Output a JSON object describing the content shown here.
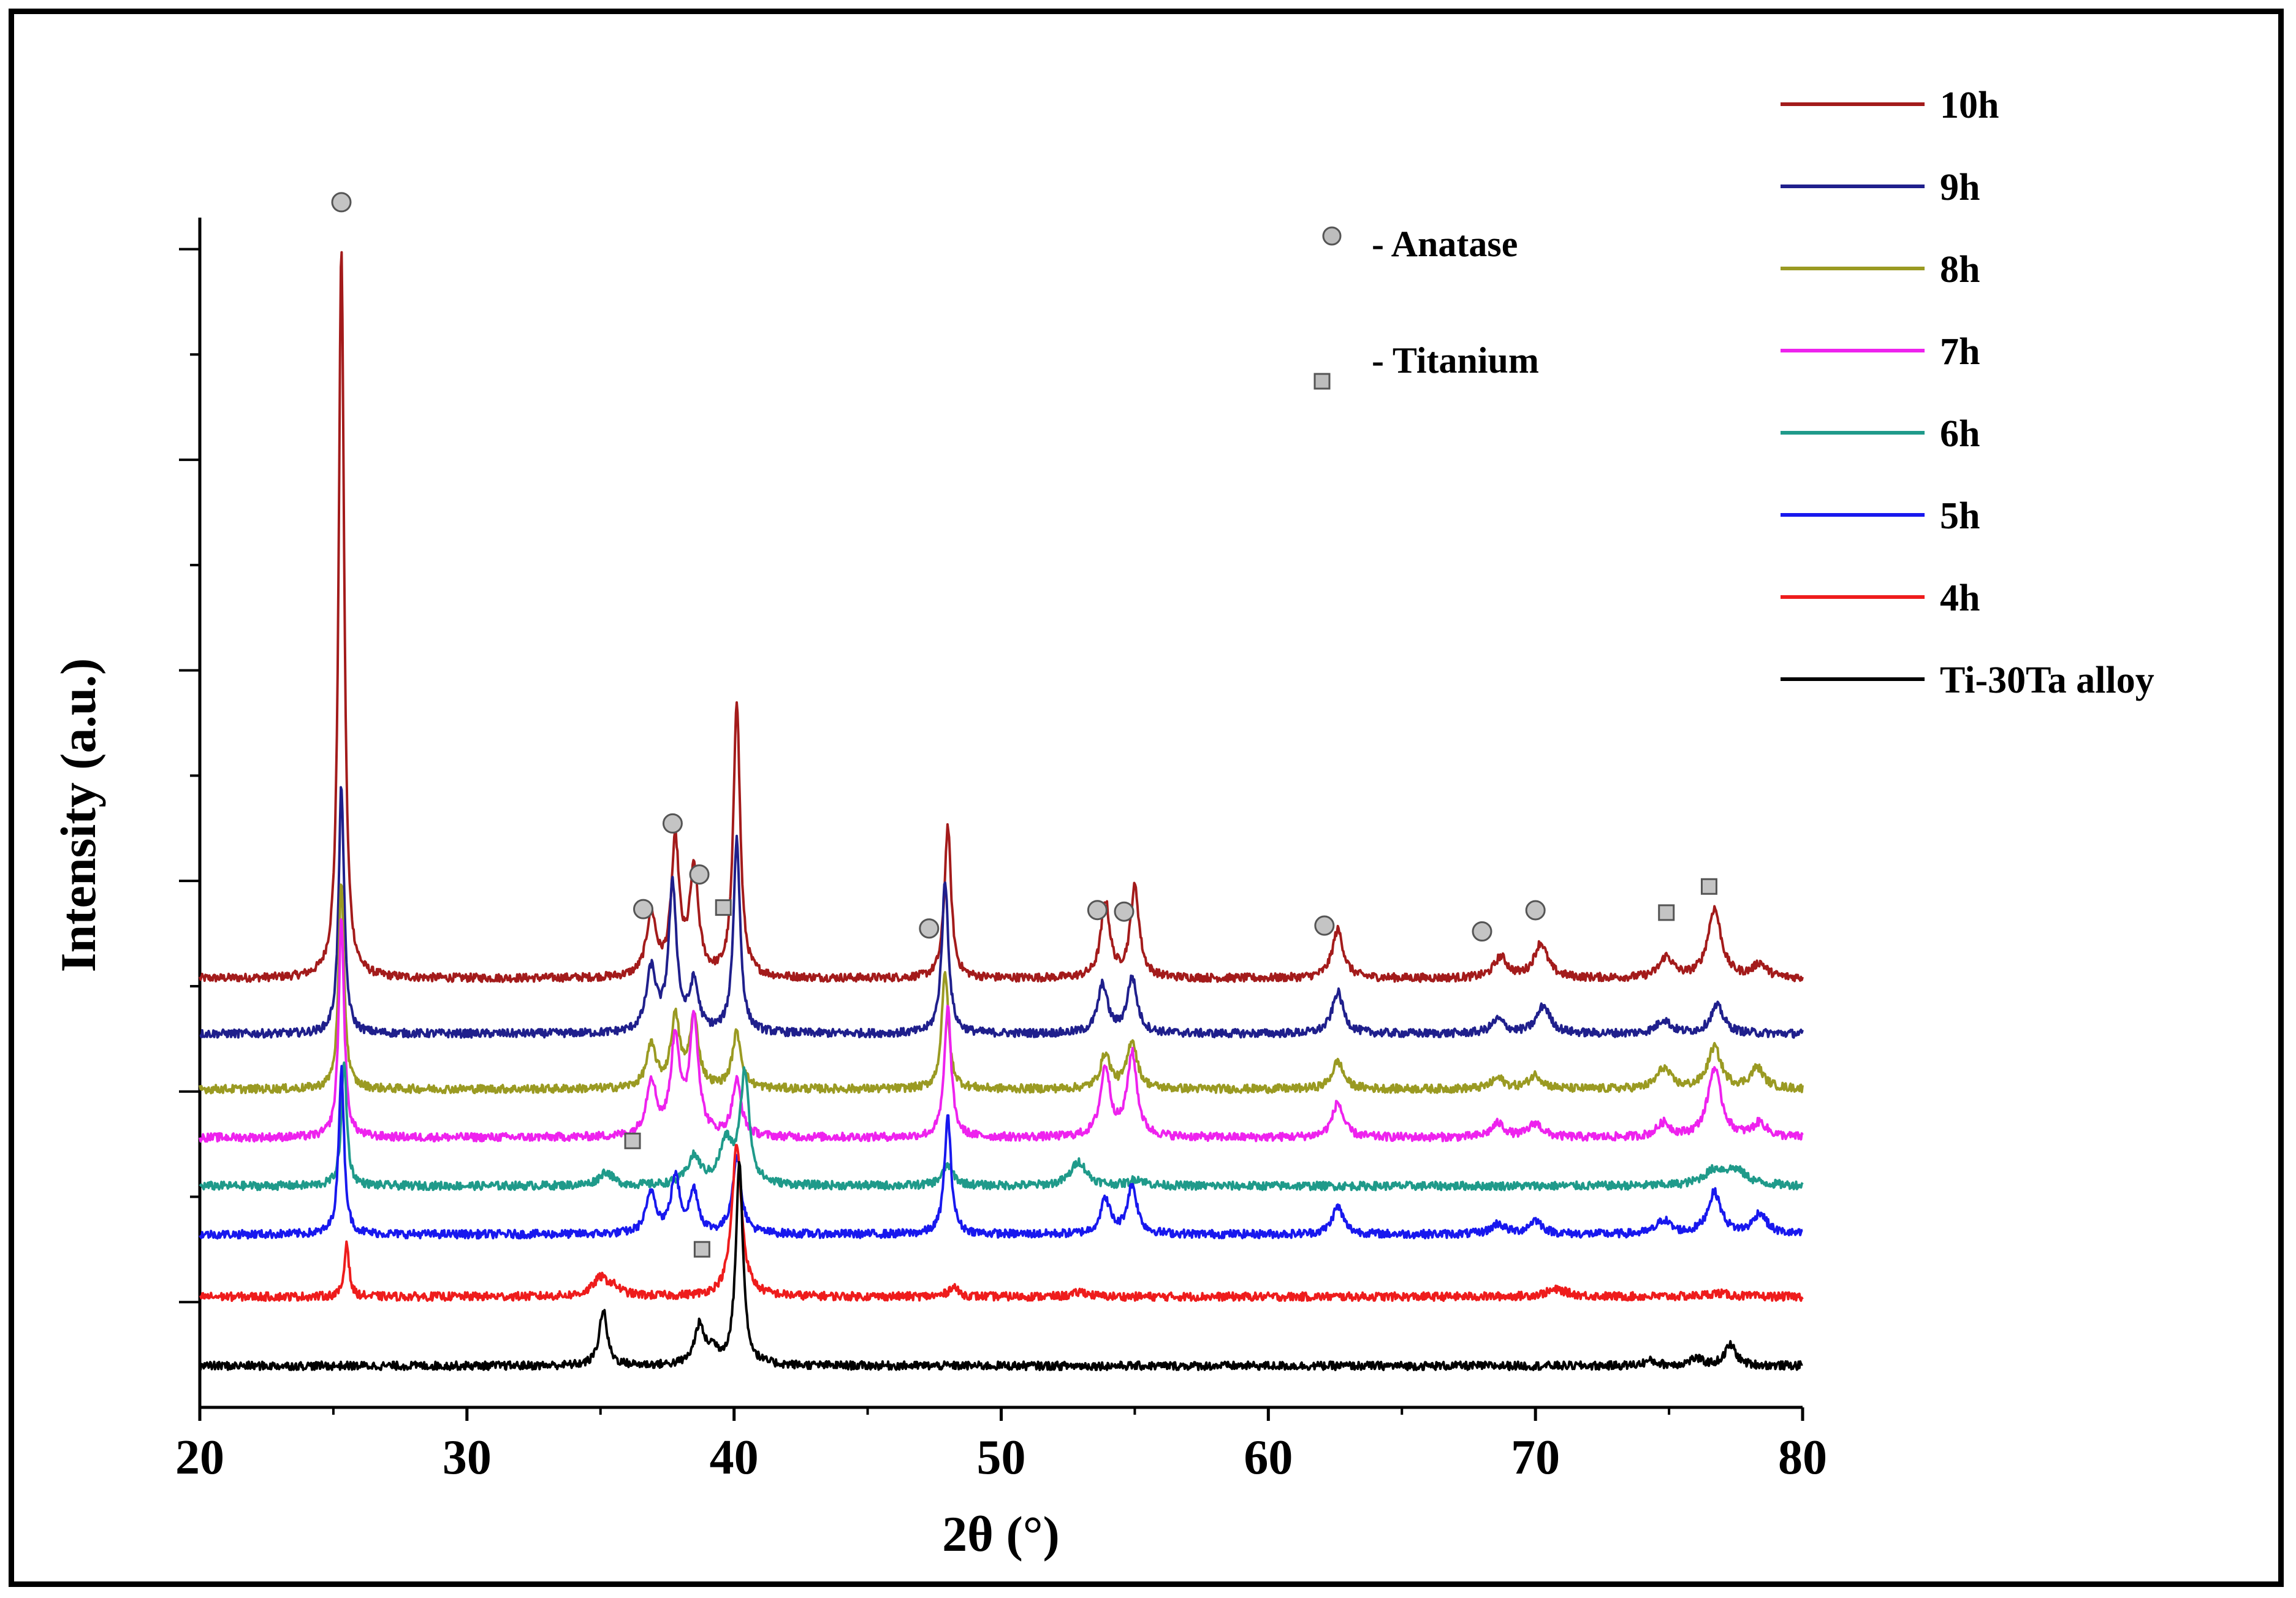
{
  "chart_data": {
    "type": "line",
    "title": "",
    "xlabel": "2θ (°)",
    "ylabel": "Intensity (a.u.)",
    "xlim": [
      20,
      80
    ],
    "xticks": [
      "20",
      "30",
      "40",
      "50",
      "60",
      "70",
      "80"
    ],
    "y_units": "arbitrary (stacked patterns, offset baselines)",
    "phase_key": [
      {
        "marker": "circle",
        "label": "- Anatase"
      },
      {
        "marker": "square",
        "label": "- Titanium"
      }
    ],
    "series": [
      {
        "name": "10h",
        "color": "#a31b1b",
        "baseline": 6.2,
        "peaks": [
          [
            25.3,
            10.6,
            0.12
          ],
          [
            36.9,
            0.9,
            0.22
          ],
          [
            37.8,
            1.9,
            0.18
          ],
          [
            38.5,
            1.5,
            0.2
          ],
          [
            40.1,
            4.0,
            0.15
          ],
          [
            48.0,
            2.2,
            0.15
          ],
          [
            53.9,
            1.1,
            0.2
          ],
          [
            55.0,
            1.3,
            0.2
          ],
          [
            62.6,
            0.7,
            0.25
          ],
          [
            68.7,
            0.3,
            0.3
          ],
          [
            70.2,
            0.5,
            0.3
          ],
          [
            74.9,
            0.3,
            0.3
          ],
          [
            76.7,
            1.0,
            0.3
          ],
          [
            78.4,
            0.2,
            0.3
          ]
        ]
      },
      {
        "name": "9h",
        "color": "#1f1f8c",
        "baseline": 5.4,
        "peaks": [
          [
            25.3,
            3.6,
            0.12
          ],
          [
            36.9,
            0.9,
            0.22
          ],
          [
            37.7,
            2.1,
            0.18
          ],
          [
            38.5,
            0.7,
            0.2
          ],
          [
            40.1,
            2.8,
            0.15
          ],
          [
            47.9,
            2.2,
            0.15
          ],
          [
            53.8,
            0.7,
            0.22
          ],
          [
            54.9,
            0.8,
            0.22
          ],
          [
            62.6,
            0.6,
            0.25
          ],
          [
            68.6,
            0.2,
            0.3
          ],
          [
            70.3,
            0.4,
            0.3
          ],
          [
            74.8,
            0.2,
            0.3
          ],
          [
            76.8,
            0.4,
            0.3
          ]
        ]
      },
      {
        "name": "8h",
        "color": "#9a9a22",
        "baseline": 4.6,
        "peaks": [
          [
            25.3,
            3.0,
            0.12
          ],
          [
            36.9,
            0.6,
            0.22
          ],
          [
            37.8,
            1.0,
            0.2
          ],
          [
            38.5,
            1.0,
            0.2
          ],
          [
            40.1,
            0.8,
            0.2
          ],
          [
            47.9,
            1.7,
            0.15
          ],
          [
            53.9,
            0.5,
            0.22
          ],
          [
            54.9,
            0.7,
            0.22
          ],
          [
            62.6,
            0.4,
            0.25
          ],
          [
            68.6,
            0.15,
            0.3
          ],
          [
            70.0,
            0.2,
            0.3
          ],
          [
            74.8,
            0.3,
            0.3
          ],
          [
            76.7,
            0.6,
            0.3
          ],
          [
            78.3,
            0.3,
            0.3
          ]
        ]
      },
      {
        "name": "7h",
        "color": "#ee22ee",
        "baseline": 3.9,
        "peaks": [
          [
            25.3,
            3.2,
            0.12
          ],
          [
            36.9,
            0.8,
            0.22
          ],
          [
            37.8,
            1.4,
            0.2
          ],
          [
            38.5,
            1.7,
            0.2
          ],
          [
            40.1,
            0.8,
            0.2
          ],
          [
            48.0,
            1.9,
            0.15
          ],
          [
            53.9,
            1.0,
            0.22
          ],
          [
            54.9,
            1.2,
            0.22
          ],
          [
            62.6,
            0.5,
            0.25
          ],
          [
            68.6,
            0.2,
            0.3
          ],
          [
            70.0,
            0.2,
            0.3
          ],
          [
            74.8,
            0.2,
            0.3
          ],
          [
            76.7,
            1.0,
            0.3
          ],
          [
            78.4,
            0.2,
            0.3
          ]
        ]
      },
      {
        "name": "6h",
        "color": "#1f9a8a",
        "baseline": 3.2,
        "peaks": [
          [
            25.4,
            1.8,
            0.12
          ],
          [
            35.2,
            0.2,
            0.3
          ],
          [
            38.5,
            0.4,
            0.3
          ],
          [
            39.7,
            0.6,
            0.3
          ],
          [
            40.4,
            1.6,
            0.2
          ],
          [
            48.0,
            0.3,
            0.25
          ],
          [
            52.9,
            0.35,
            0.35
          ],
          [
            55.1,
            0.1,
            0.3
          ],
          [
            76.7,
            0.2,
            0.5
          ],
          [
            77.5,
            0.2,
            0.5
          ]
        ]
      },
      {
        "name": "5h",
        "color": "#1818ee",
        "baseline": 2.5,
        "peaks": [
          [
            25.3,
            2.4,
            0.12
          ],
          [
            36.9,
            0.6,
            0.22
          ],
          [
            37.8,
            0.8,
            0.2
          ],
          [
            38.5,
            0.6,
            0.2
          ],
          [
            40.1,
            1.1,
            0.2
          ],
          [
            48.0,
            1.7,
            0.15
          ],
          [
            53.9,
            0.5,
            0.22
          ],
          [
            54.9,
            0.7,
            0.22
          ],
          [
            62.6,
            0.4,
            0.25
          ],
          [
            68.6,
            0.15,
            0.3
          ],
          [
            70.0,
            0.2,
            0.3
          ],
          [
            74.8,
            0.2,
            0.3
          ],
          [
            76.7,
            0.6,
            0.3
          ],
          [
            78.4,
            0.3,
            0.3
          ]
        ]
      },
      {
        "name": "4h",
        "color": "#ee1c1c",
        "baseline": 1.6,
        "peaks": [
          [
            25.5,
            0.8,
            0.1
          ],
          [
            35.0,
            0.25,
            0.35
          ],
          [
            35.5,
            0.1,
            0.35
          ],
          [
            40.1,
            2.2,
            0.22
          ],
          [
            48.2,
            0.15,
            0.2
          ],
          [
            53.0,
            0.07,
            0.3
          ],
          [
            70.8,
            0.1,
            0.5
          ],
          [
            76.8,
            0.05,
            0.5
          ]
        ]
      },
      {
        "name": "Ti-30Ta alloy",
        "color": "#000000",
        "baseline": 0.6,
        "peaks": [
          [
            35.1,
            0.8,
            0.18
          ],
          [
            38.7,
            0.55,
            0.22
          ],
          [
            39.2,
            0.2,
            0.25
          ],
          [
            40.2,
            2.9,
            0.16
          ],
          [
            74.3,
            0.07,
            0.3
          ],
          [
            76.0,
            0.1,
            0.3
          ],
          [
            77.3,
            0.3,
            0.25
          ]
        ]
      }
    ],
    "annotations": [
      {
        "marker": "circle",
        "x": 25.3,
        "above": "10h"
      },
      {
        "marker": "circle",
        "x": 36.6,
        "above": "10h"
      },
      {
        "marker": "circle",
        "x": 37.7,
        "above": "10h"
      },
      {
        "marker": "circle",
        "x": 38.7,
        "above": "10h"
      },
      {
        "marker": "square",
        "x": 39.6,
        "above": "10h"
      },
      {
        "marker": "circle",
        "x": 47.3,
        "above": "10h"
      },
      {
        "marker": "circle",
        "x": 53.6,
        "above": "10h"
      },
      {
        "marker": "circle",
        "x": 54.6,
        "above": "10h"
      },
      {
        "marker": "circle",
        "x": 62.1,
        "above": "10h"
      },
      {
        "marker": "circle",
        "x": 68.0,
        "above": "10h"
      },
      {
        "marker": "circle",
        "x": 70.0,
        "above": "10h"
      },
      {
        "marker": "square",
        "x": 74.9,
        "above": "10h"
      },
      {
        "marker": "square",
        "x": 76.5,
        "above": "10h"
      },
      {
        "marker": "square",
        "x": 36.2,
        "above": "6h"
      },
      {
        "marker": "square",
        "x": 38.8,
        "above": "4h"
      }
    ],
    "legend_position": "right",
    "phase_key_position": "top-right inside plot"
  }
}
